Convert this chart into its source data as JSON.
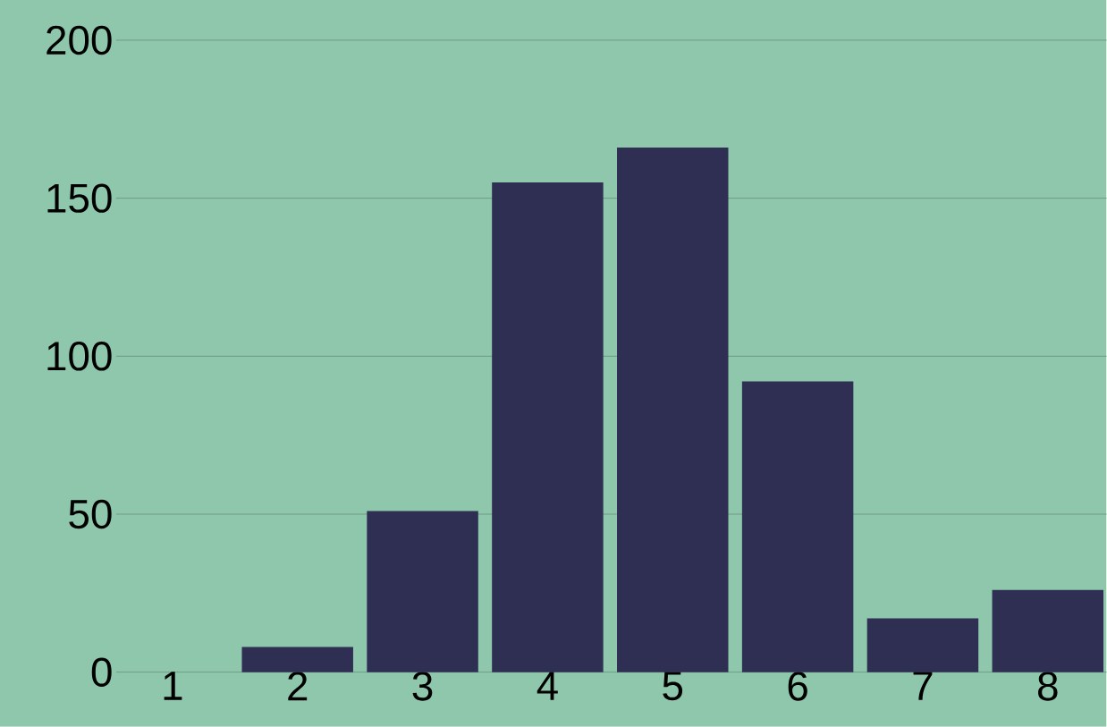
{
  "chart_data": {
    "type": "bar",
    "categories": [
      "1",
      "2",
      "3",
      "4",
      "5",
      "6",
      "7",
      "8"
    ],
    "values": [
      0,
      8,
      51,
      155,
      166,
      92,
      17,
      26
    ],
    "color": "#2e2f53",
    "ylim": [
      0,
      200
    ],
    "yticks": [
      0,
      50,
      100,
      150,
      200
    ],
    "grid": "y"
  }
}
